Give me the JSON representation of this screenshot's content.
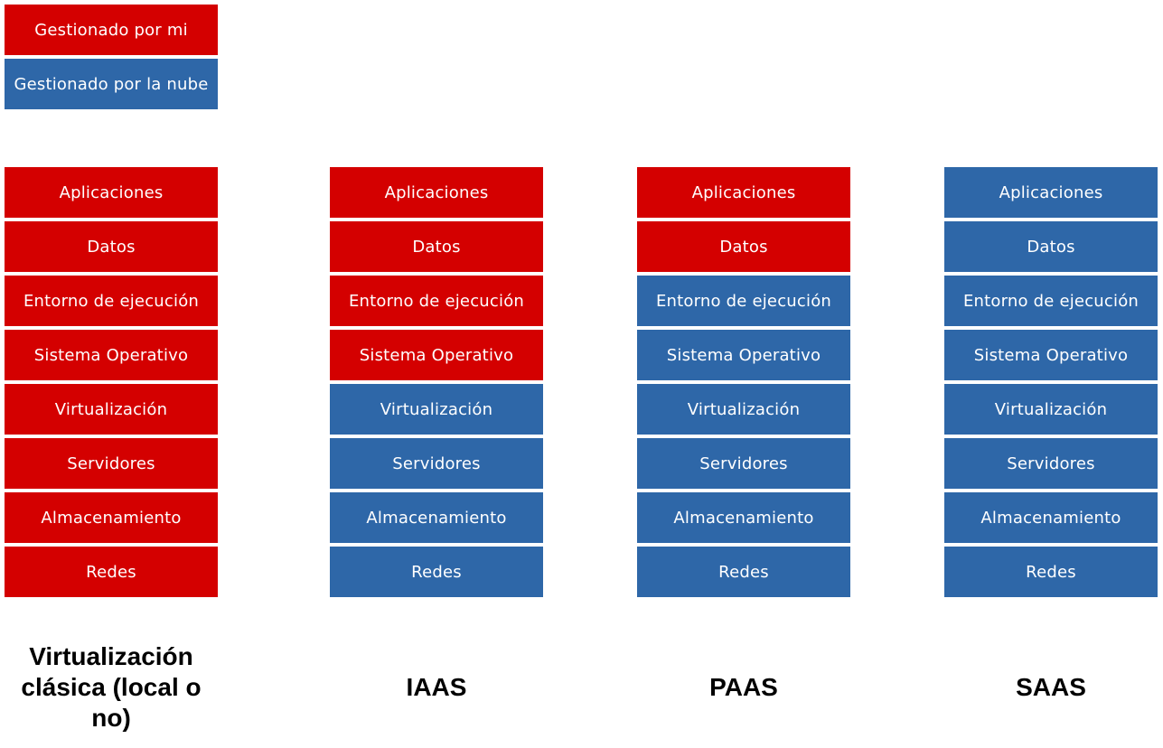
{
  "colors": {
    "mine": "#d40000",
    "cloud": "#2e67a8"
  },
  "legend": {
    "mine": "Gestionado por mi",
    "cloud": "Gestionado por la nube"
  },
  "layers": [
    "Aplicaciones",
    "Datos",
    "Entorno de ejecución",
    "Sistema Operativo",
    "Virtualización",
    "Servidores",
    "Almacenamiento",
    "Redes"
  ],
  "columns": [
    {
      "title": "Virtualización clásica (local o no)",
      "managed_by": [
        "mine",
        "mine",
        "mine",
        "mine",
        "mine",
        "mine",
        "mine",
        "mine"
      ]
    },
    {
      "title": "IAAS",
      "managed_by": [
        "mine",
        "mine",
        "mine",
        "mine",
        "cloud",
        "cloud",
        "cloud",
        "cloud"
      ]
    },
    {
      "title": "PAAS",
      "managed_by": [
        "mine",
        "mine",
        "cloud",
        "cloud",
        "cloud",
        "cloud",
        "cloud",
        "cloud"
      ]
    },
    {
      "title": "SAAS",
      "managed_by": [
        "cloud",
        "cloud",
        "cloud",
        "cloud",
        "cloud",
        "cloud",
        "cloud",
        "cloud"
      ]
    }
  ]
}
